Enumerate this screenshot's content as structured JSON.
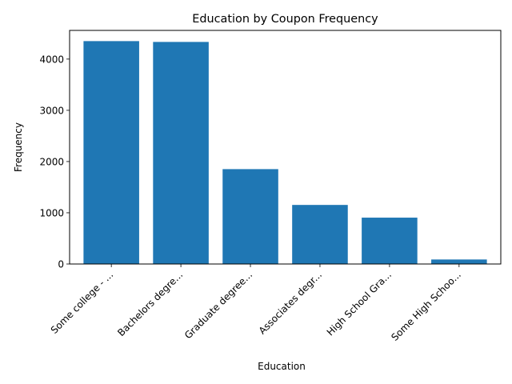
{
  "chart_data": {
    "type": "bar",
    "title": "Education by Coupon Frequency",
    "xlabel": "Education",
    "ylabel": "Frequency",
    "categories": [
      "Some college - ...",
      "Bachelors degre...",
      "Graduate degree...",
      "Associates degr...",
      "High School Gra...",
      "Some High Schoo..."
    ],
    "values": [
      4351,
      4335,
      1852,
      1153,
      905,
      88
    ],
    "ylim": [
      0,
      4560
    ],
    "yticks": [
      0,
      1000,
      2000,
      3000,
      4000
    ],
    "grid": false,
    "bar_color": "#1f77b4"
  }
}
